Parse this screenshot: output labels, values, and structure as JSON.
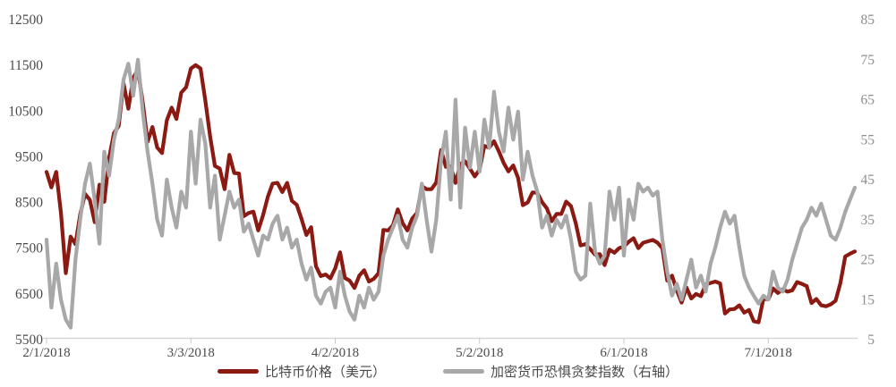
{
  "chart_data": {
    "type": "line",
    "title": "",
    "grid": "off",
    "legend_position": "bottom-center",
    "x_start_date": "2/1/2018",
    "x_end_date": "7/19/2018",
    "x_tick_labels": [
      "2/1/2018",
      "3/3/2018",
      "4/2/2018",
      "5/2/2018",
      "6/1/2018",
      "7/1/2018"
    ],
    "x_tick_day_index": [
      0,
      30,
      60,
      90,
      120,
      150
    ],
    "left_axis": {
      "min": 5500,
      "max": 12500,
      "step": 1000,
      "labels": [
        "12500",
        "11500",
        "10500",
        "9500",
        "8500",
        "7500",
        "6500",
        "5500"
      ],
      "label_color": "#4A4A4A"
    },
    "right_axis": {
      "min": 5,
      "max": 85,
      "step": 10,
      "labels": [
        "85",
        "75",
        "65",
        "55",
        "45",
        "35",
        "25",
        "15",
        "5"
      ],
      "label_color": "#8E8E8E"
    },
    "axis_line_color": "#D6D6D6",
    "series": [
      {
        "id": "btc-price-line",
        "name": "比特币价格（美元）",
        "axis": "left",
        "color": "#8B1A13",
        "values": [
          9170,
          8830,
          9170,
          8270,
          6955,
          7754,
          7588,
          8237,
          8689,
          8556,
          8070,
          8891,
          8516,
          9477,
          10016,
          10178,
          11112,
          10551,
          11225,
          11403,
          10690,
          9830,
          10151,
          9704,
          9580,
          10301,
          10576,
          10327,
          10904,
          11022,
          11432,
          11504,
          11432,
          10728,
          9938,
          9299,
          9242,
          8790,
          9543,
          9146,
          9133,
          8201,
          8270,
          8300,
          7890,
          8223,
          8630,
          8913,
          8929,
          8728,
          8930,
          8537,
          8450,
          8138,
          7790,
          7960,
          7106,
          6890,
          6926,
          6840,
          7060,
          7410,
          6850,
          6790,
          6630,
          6900,
          7020,
          6770,
          6830,
          6950,
          7900,
          7890,
          8000,
          8350,
          8050,
          7890,
          8150,
          8270,
          8860,
          8790,
          8790,
          8940,
          9650,
          9280,
          9290,
          8930,
          9340,
          9400,
          9240,
          9070,
          9220,
          9740,
          9700,
          9840,
          9620,
          9370,
          9180,
          9310,
          9040,
          8440,
          8500,
          8720,
          8710,
          8510,
          8370,
          8090,
          8250,
          8250,
          8520,
          8420,
          8040,
          7560,
          7590,
          7480,
          7360,
          7370,
          7130,
          7470,
          7400,
          7500,
          7540,
          7640,
          7720,
          7500,
          7620,
          7650,
          7680,
          7620,
          7500,
          6790,
          6900,
          6580,
          6310,
          6640,
          6400,
          6500,
          6450,
          6710,
          6740,
          6770,
          6730,
          6070,
          6160,
          6170,
          6250,
          6090,
          6150,
          5900,
          5880,
          6400,
          6380,
          6620,
          6520,
          6600,
          6550,
          6580,
          6760,
          6720,
          6670,
          6300,
          6390,
          6250,
          6230,
          6270,
          6350,
          6740,
          7320,
          7380,
          7430
        ]
      },
      {
        "id": "fear-greed-index-line",
        "name": "加密货币恐惧贪婪指数（右轴）",
        "axis": "right",
        "color": "#A8A8A8",
        "values": [
          30,
          13,
          24,
          15,
          10,
          8,
          25,
          35,
          44,
          49,
          40,
          29,
          52,
          46,
          55,
          60,
          70,
          74,
          66,
          75,
          62,
          52,
          44,
          35,
          31,
          45,
          38,
          33,
          42,
          38,
          57,
          44,
          60,
          54,
          38,
          46,
          30,
          36,
          42,
          38,
          40,
          32,
          34,
          30,
          26,
          31,
          30,
          34,
          36,
          30,
          33,
          28,
          30,
          24,
          20,
          23,
          16,
          14,
          17,
          18,
          13,
          22,
          16,
          12,
          10,
          16,
          13,
          18,
          15,
          17,
          26,
          30,
          33,
          36,
          30,
          28,
          33,
          36,
          44,
          35,
          27,
          35,
          50,
          57,
          40,
          65,
          38,
          58,
          48,
          57,
          47,
          60,
          53,
          67,
          57,
          52,
          63,
          55,
          62,
          45,
          52,
          46,
          42,
          33,
          36,
          31,
          35,
          33,
          36,
          30,
          22,
          20,
          21,
          39,
          27,
          24,
          26,
          42,
          35,
          43,
          26,
          40,
          35,
          44,
          42,
          43,
          41,
          42,
          30,
          22,
          16,
          19,
          15,
          20,
          25,
          18,
          21,
          17,
          24,
          28,
          33,
          37,
          34,
          36,
          28,
          21,
          18,
          16,
          14,
          16,
          15,
          22,
          18,
          17,
          20,
          25,
          29,
          33,
          35,
          38,
          36,
          39,
          35,
          31,
          30,
          33,
          37,
          40,
          43
        ]
      }
    ]
  },
  "legend": {
    "items": [
      {
        "label": "比特币价格（美元）"
      },
      {
        "label": "加密货币恐惧贪婪指数（右轴）"
      }
    ]
  }
}
